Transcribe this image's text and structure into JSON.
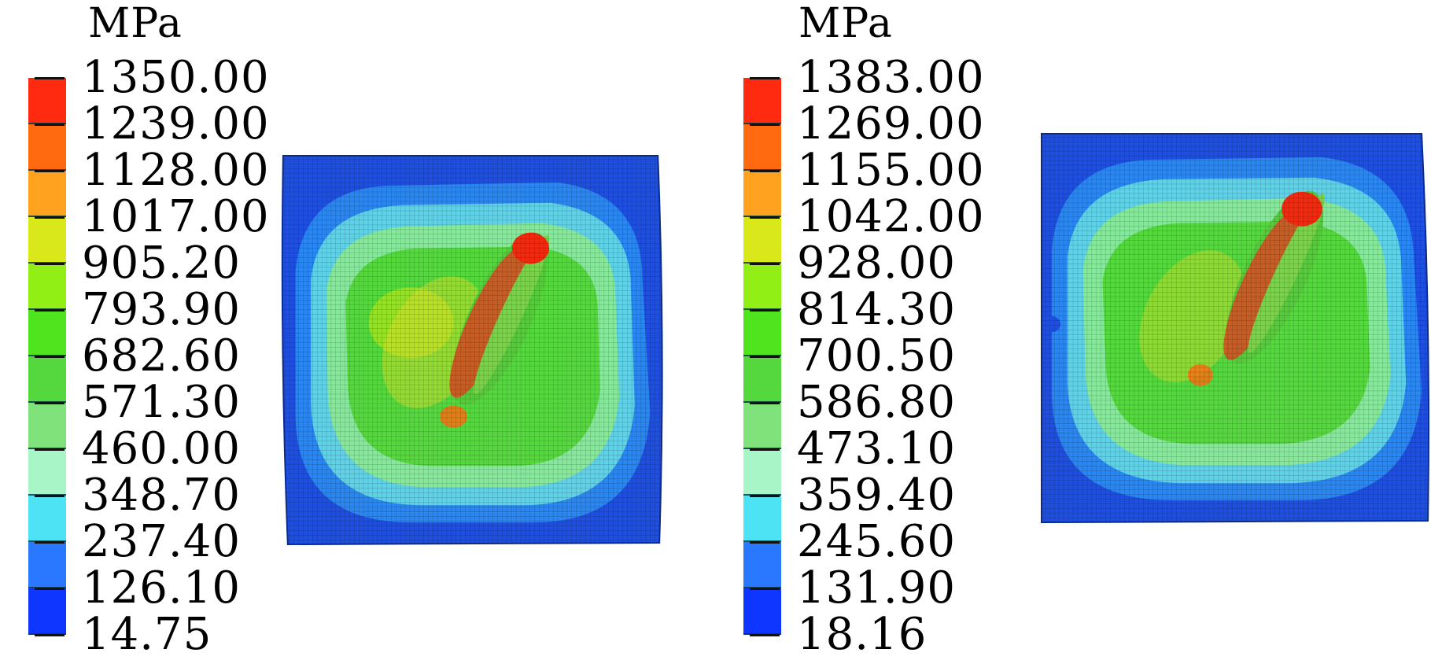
{
  "panels": [
    {
      "unit": "MPa",
      "legend_labels": [
        "1350.00",
        "1239.00",
        "1128.00",
        "1017.00",
        "905.20",
        "793.90",
        "682.60",
        "571.30",
        "460.00",
        "348.70",
        "237.40",
        "126.10",
        "14.75"
      ]
    },
    {
      "unit": "MPa",
      "legend_labels": [
        "1383.00",
        "1269.00",
        "1155.00",
        "1042.00",
        "928.00",
        "814.30",
        "700.50",
        "586.80",
        "473.10",
        "359.40",
        "245.60",
        "131.90",
        "18.16"
      ]
    }
  ],
  "band_colors": [
    "#ff2a10",
    "#ff6a10",
    "#ffa21f",
    "#d8e81a",
    "#92ef15",
    "#4fe41e",
    "#55d83e",
    "#7fe27a",
    "#a8f5c8",
    "#4ee2f5",
    "#2a78ff",
    "#0f36ff"
  ]
}
